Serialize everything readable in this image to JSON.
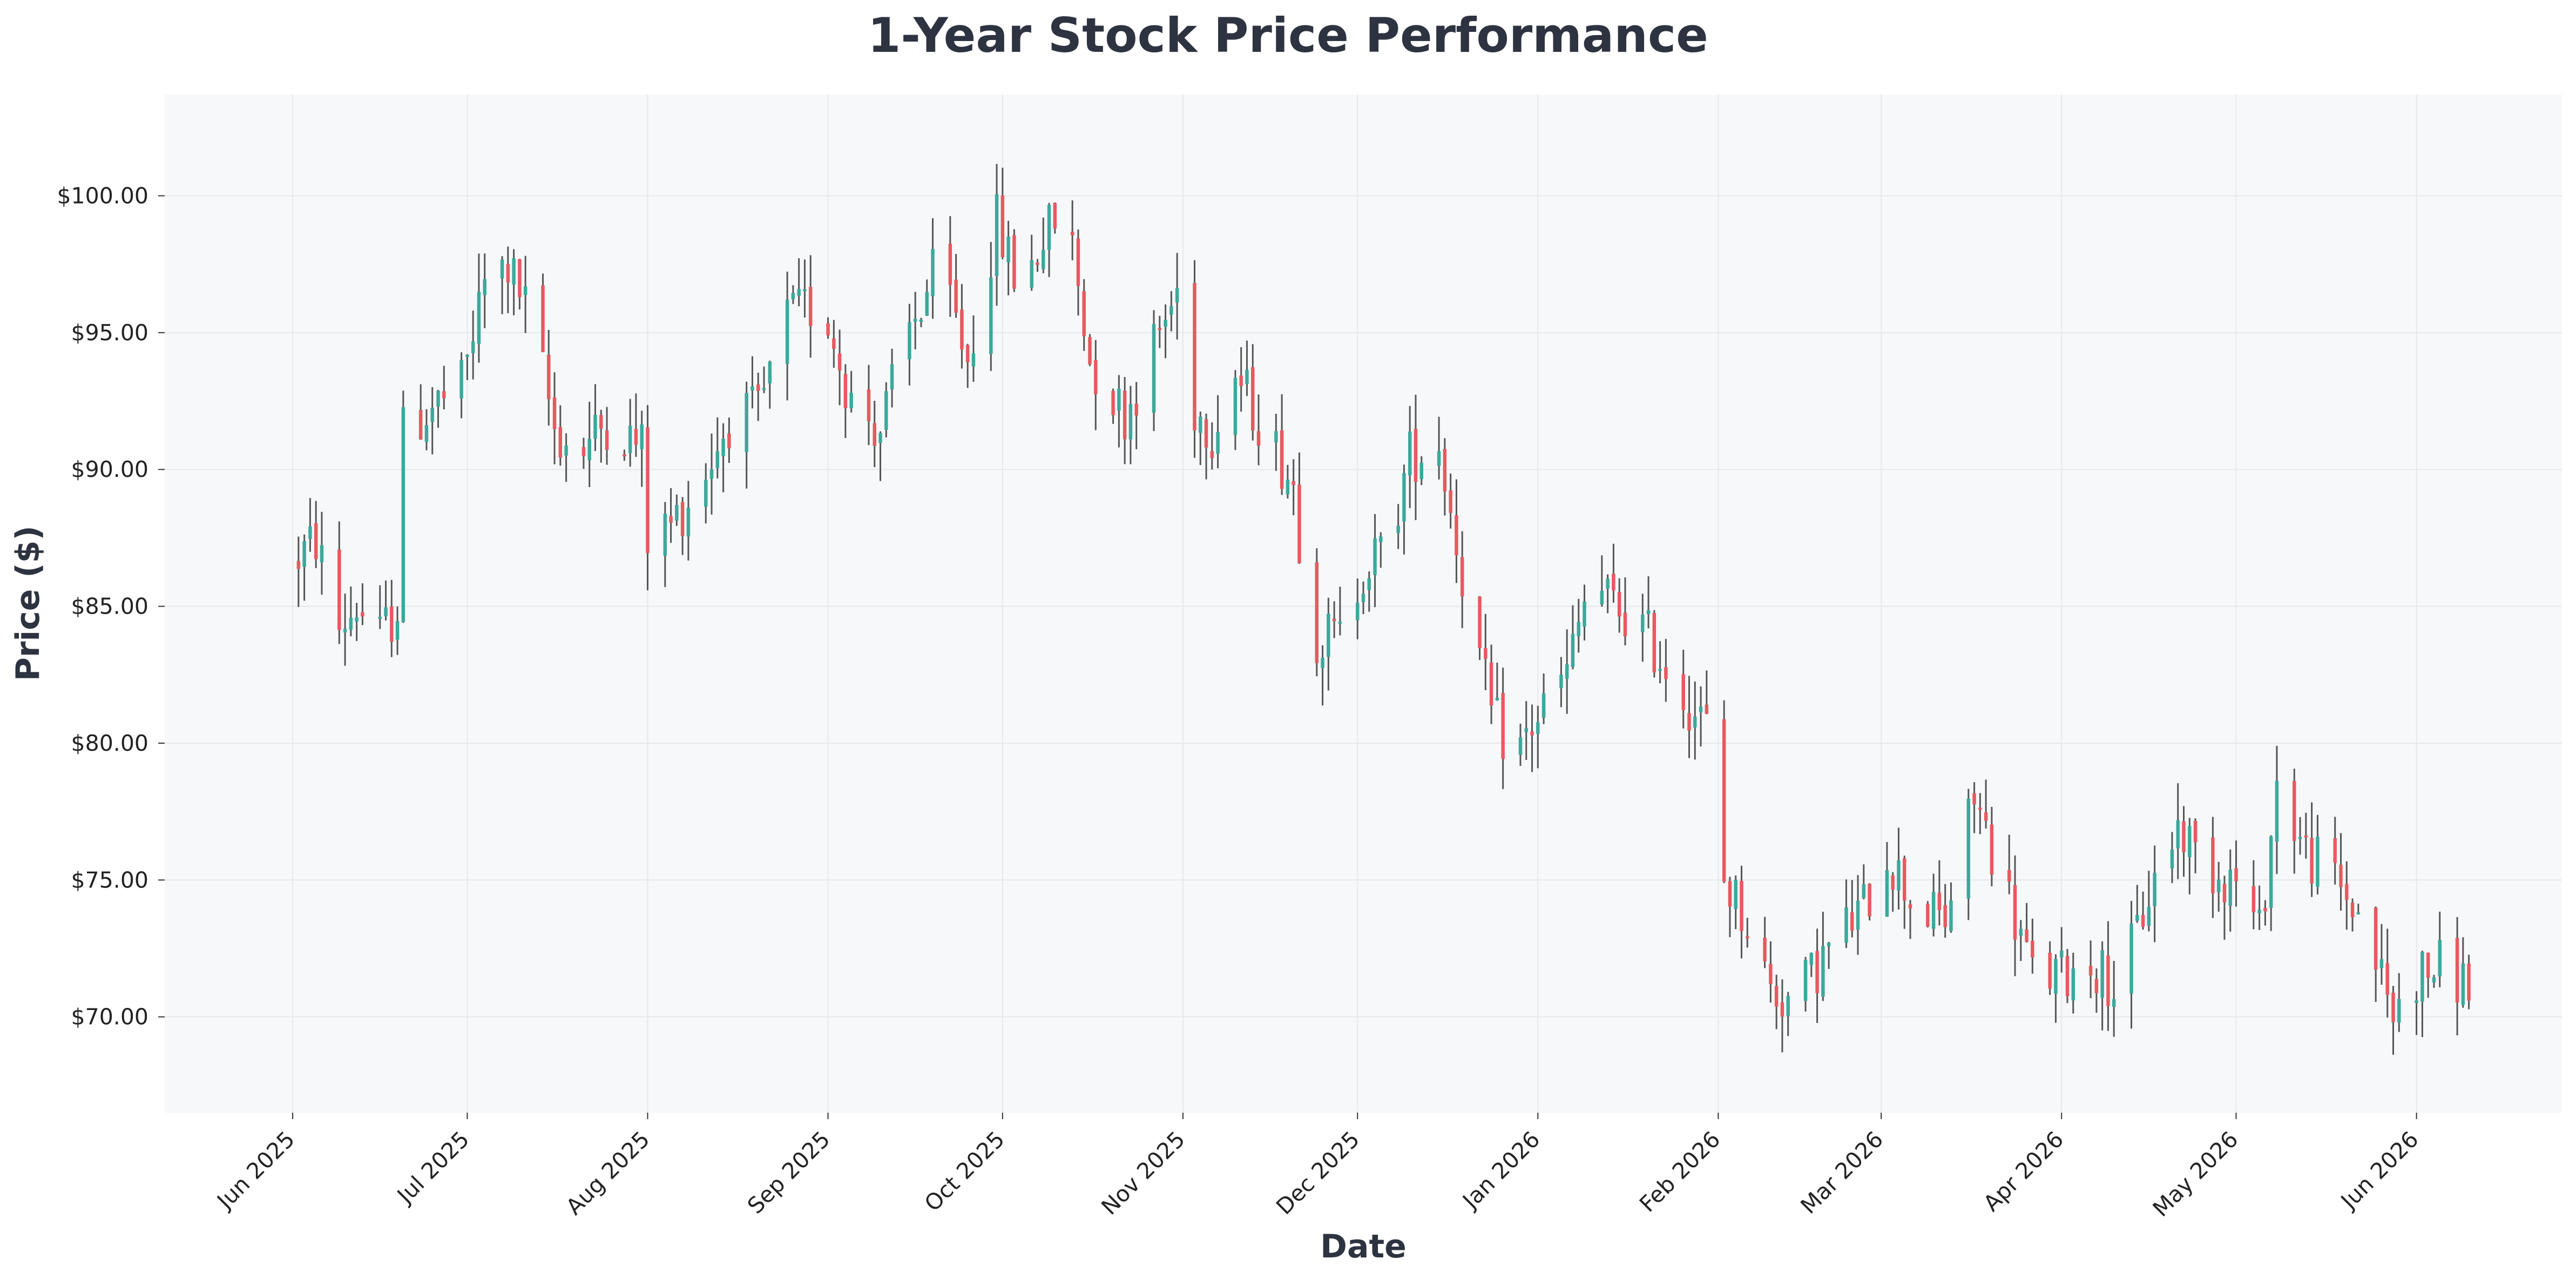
{
  "chart_data": {
    "type": "candlestick",
    "title": "1-Year Stock Price Performance",
    "xlabel": "Date",
    "ylabel": "Price ($)",
    "yticks": [
      "$70.00",
      "$75.00",
      "$80.00",
      "$85.00",
      "$90.00",
      "$95.00",
      "$100.00"
    ],
    "ylim": [
      66.5,
      103.7
    ],
    "xticks": [
      {
        "date": "2025-06-01",
        "label": "Jun 2025"
      },
      {
        "date": "2025-07-01",
        "label": "Jul 2025"
      },
      {
        "date": "2025-08-01",
        "label": "Aug 2025"
      },
      {
        "date": "2025-09-01",
        "label": "Sep 2025"
      },
      {
        "date": "2025-10-01",
        "label": "Oct 2025"
      },
      {
        "date": "2025-11-01",
        "label": "Nov 2025"
      },
      {
        "date": "2025-12-01",
        "label": "Dec 2025"
      },
      {
        "date": "2026-01-01",
        "label": "Jan 2026"
      },
      {
        "date": "2026-02-01",
        "label": "Feb 2026"
      },
      {
        "date": "2026-03-01",
        "label": "Mar 2026"
      },
      {
        "date": "2026-04-01",
        "label": "Apr 2026"
      },
      {
        "date": "2026-05-01",
        "label": "May 2026"
      },
      {
        "date": "2026-06-01",
        "label": "Jun 2026"
      }
    ],
    "xlim": [
      "2025-05-10",
      "2026-06-26"
    ],
    "grid": true,
    "colors": {
      "up": "#3ba99c",
      "down": "#e8595f",
      "wick": "#555555",
      "plot_bg": "#f7f8fa",
      "grid": "#e6e8eb"
    },
    "anchors": [
      [
        "2025-06-01",
        86.6
      ],
      [
        "2025-06-05",
        87.4
      ],
      [
        "2025-06-09",
        84.2
      ],
      [
        "2025-06-12",
        85.0
      ],
      [
        "2025-06-16",
        83.8
      ],
      [
        "2025-06-19",
        85.0
      ],
      [
        "2025-06-20",
        91.3
      ],
      [
        "2025-06-25",
        92.3
      ],
      [
        "2025-06-30",
        93.0
      ],
      [
        "2025-07-04",
        96.8
      ],
      [
        "2025-07-08",
        97.4
      ],
      [
        "2025-07-12",
        95.5
      ],
      [
        "2025-07-16",
        91.5
      ],
      [
        "2025-07-20",
        90.5
      ],
      [
        "2025-07-25",
        91.8
      ],
      [
        "2025-07-31",
        90.8
      ],
      [
        "2025-08-01",
        87.5
      ],
      [
        "2025-08-05",
        88.0
      ],
      [
        "2025-08-10",
        89.5
      ],
      [
        "2025-08-15",
        91.8
      ],
      [
        "2025-08-20",
        92.0
      ],
      [
        "2025-08-25",
        95.5
      ],
      [
        "2025-08-30",
        96.0
      ],
      [
        "2025-09-01",
        95.5
      ],
      [
        "2025-09-05",
        92.5
      ],
      [
        "2025-09-10",
        91.5
      ],
      [
        "2025-09-15",
        95.0
      ],
      [
        "2025-09-20",
        97.5
      ],
      [
        "2025-09-25",
        94.0
      ],
      [
        "2025-09-30",
        99.0
      ],
      [
        "2025-10-04",
        96.5
      ],
      [
        "2025-10-08",
        98.5
      ],
      [
        "2025-10-12",
        99.5
      ],
      [
        "2025-10-16",
        94.0
      ],
      [
        "2025-10-22",
        92.0
      ],
      [
        "2025-10-27",
        94.5
      ],
      [
        "2025-11-01",
        97.0
      ],
      [
        "2025-11-02",
        92.5
      ],
      [
        "2025-11-06",
        91.5
      ],
      [
        "2025-11-10",
        93.5
      ],
      [
        "2025-11-15",
        91.5
      ],
      [
        "2025-11-20",
        89.5
      ],
      [
        "2025-11-23",
        84.0
      ],
      [
        "2025-11-28",
        83.8
      ],
      [
        "2025-12-02",
        86.5
      ],
      [
        "2025-12-06",
        87.0
      ],
      [
        "2025-12-10",
        90.5
      ],
      [
        "2025-12-15",
        91.0
      ],
      [
        "2025-12-20",
        85.0
      ],
      [
        "2025-12-24",
        81.0
      ],
      [
        "2025-12-28",
        79.5
      ],
      [
        "2026-01-01",
        81.0
      ],
      [
        "2026-01-06",
        82.5
      ],
      [
        "2026-01-10",
        86.0
      ],
      [
        "2026-01-14",
        85.0
      ],
      [
        "2026-01-18",
        84.5
      ],
      [
        "2026-01-24",
        82.5
      ],
      [
        "2026-01-30",
        80.5
      ],
      [
        "2026-02-02",
        75.0
      ],
      [
        "2026-02-06",
        73.5
      ],
      [
        "2026-02-10",
        71.0
      ],
      [
        "2026-02-14",
        70.5
      ],
      [
        "2026-02-20",
        72.5
      ],
      [
        "2026-02-26",
        74.0
      ],
      [
        "2026-03-02",
        76.0
      ],
      [
        "2026-03-07",
        74.0
      ],
      [
        "2026-03-12",
        73.5
      ],
      [
        "2026-03-17",
        78.0
      ],
      [
        "2026-03-22",
        75.0
      ],
      [
        "2026-03-27",
        71.5
      ],
      [
        "2026-04-01",
        71.5
      ],
      [
        "2026-04-06",
        72.0
      ],
      [
        "2026-04-11",
        71.0
      ],
      [
        "2026-04-16",
        74.5
      ],
      [
        "2026-04-21",
        77.0
      ],
      [
        "2026-04-26",
        75.5
      ],
      [
        "2026-05-01",
        75.0
      ],
      [
        "2026-05-05",
        73.0
      ],
      [
        "2026-05-08",
        78.5
      ],
      [
        "2026-05-13",
        76.0
      ],
      [
        "2026-05-18",
        75.0
      ],
      [
        "2026-05-23",
        73.5
      ],
      [
        "2026-05-28",
        70.0
      ],
      [
        "2026-06-01",
        71.5
      ],
      [
        "2026-06-05",
        71.8
      ],
      [
        "2026-06-10",
        71.2
      ]
    ]
  }
}
